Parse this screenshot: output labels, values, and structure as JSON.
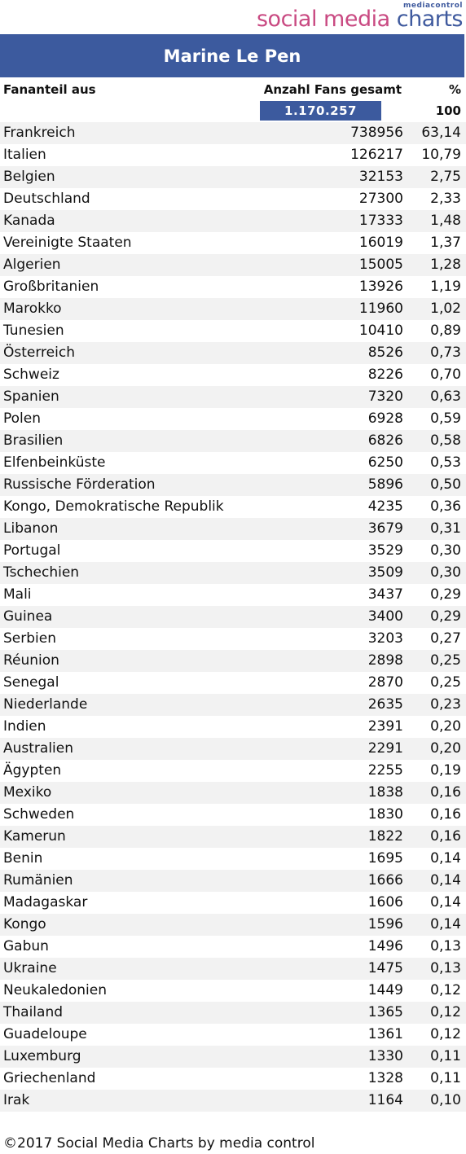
{
  "logo": {
    "top": "mediacontrol",
    "main": "social media ",
    "charts": "charts"
  },
  "title": "Marine Le Pen",
  "headers": {
    "country": "Fananteil aus",
    "fans": "Anzahl Fans gesamt",
    "pct": "%"
  },
  "total": {
    "fans": "1.170.257",
    "pct": "100"
  },
  "footer": "©2017 Social Media Charts by media control",
  "chart_data": {
    "type": "table",
    "title": "Marine Le Pen",
    "columns": [
      "Fananteil aus",
      "Anzahl Fans gesamt",
      "%"
    ],
    "rows": [
      {
        "country": "Frankreich",
        "fans": "738956",
        "pct": "63,14"
      },
      {
        "country": "Italien",
        "fans": "126217",
        "pct": "10,79"
      },
      {
        "country": "Belgien",
        "fans": "32153",
        "pct": "2,75"
      },
      {
        "country": "Deutschland",
        "fans": "27300",
        "pct": "2,33"
      },
      {
        "country": "Kanada",
        "fans": "17333",
        "pct": "1,48"
      },
      {
        "country": "Vereinigte Staaten",
        "fans": "16019",
        "pct": "1,37"
      },
      {
        "country": "Algerien",
        "fans": "15005",
        "pct": "1,28"
      },
      {
        "country": "Großbritanien",
        "fans": "13926",
        "pct": "1,19"
      },
      {
        "country": "Marokko",
        "fans": "11960",
        "pct": "1,02"
      },
      {
        "country": "Tunesien",
        "fans": "10410",
        "pct": "0,89"
      },
      {
        "country": "Österreich",
        "fans": "8526",
        "pct": "0,73"
      },
      {
        "country": "Schweiz",
        "fans": "8226",
        "pct": "0,70"
      },
      {
        "country": "Spanien",
        "fans": "7320",
        "pct": "0,63"
      },
      {
        "country": "Polen",
        "fans": "6928",
        "pct": "0,59"
      },
      {
        "country": "Brasilien",
        "fans": "6826",
        "pct": "0,58"
      },
      {
        "country": "Elfenbeinküste",
        "fans": "6250",
        "pct": "0,53"
      },
      {
        "country": "Russische Förderation",
        "fans": "5896",
        "pct": "0,50"
      },
      {
        "country": "Kongo, Demokratische Republik",
        "fans": "4235",
        "pct": "0,36"
      },
      {
        "country": "Libanon",
        "fans": "3679",
        "pct": "0,31"
      },
      {
        "country": "Portugal",
        "fans": "3529",
        "pct": "0,30"
      },
      {
        "country": "Tschechien",
        "fans": "3509",
        "pct": "0,30"
      },
      {
        "country": "Mali",
        "fans": "3437",
        "pct": "0,29"
      },
      {
        "country": "Guinea",
        "fans": "3400",
        "pct": "0,29"
      },
      {
        "country": "Serbien",
        "fans": "3203",
        "pct": "0,27"
      },
      {
        "country": "Réunion",
        "fans": "2898",
        "pct": "0,25"
      },
      {
        "country": "Senegal",
        "fans": "2870",
        "pct": "0,25"
      },
      {
        "country": "Niederlande",
        "fans": "2635",
        "pct": "0,23"
      },
      {
        "country": "Indien",
        "fans": "2391",
        "pct": "0,20"
      },
      {
        "country": "Australien",
        "fans": "2291",
        "pct": "0,20"
      },
      {
        "country": "Ägypten",
        "fans": "2255",
        "pct": "0,19"
      },
      {
        "country": "Mexiko",
        "fans": "1838",
        "pct": "0,16"
      },
      {
        "country": "Schweden",
        "fans": "1830",
        "pct": "0,16"
      },
      {
        "country": "Kamerun",
        "fans": "1822",
        "pct": "0,16"
      },
      {
        "country": "Benin",
        "fans": "1695",
        "pct": "0,14"
      },
      {
        "country": "Rumänien",
        "fans": "1666",
        "pct": "0,14"
      },
      {
        "country": "Madagaskar",
        "fans": "1606",
        "pct": "0,14"
      },
      {
        "country": "Kongo",
        "fans": "1596",
        "pct": "0,14"
      },
      {
        "country": "Gabun",
        "fans": "1496",
        "pct": "0,13"
      },
      {
        "country": "Ukraine",
        "fans": "1475",
        "pct": "0,13"
      },
      {
        "country": "Neukaledonien",
        "fans": "1449",
        "pct": "0,12"
      },
      {
        "country": "Thailand",
        "fans": "1365",
        "pct": "0,12"
      },
      {
        "country": "Guadeloupe",
        "fans": "1361",
        "pct": "0,12"
      },
      {
        "country": "Luxemburg",
        "fans": "1330",
        "pct": "0,11"
      },
      {
        "country": "Griechenland",
        "fans": "1328",
        "pct": "0,11"
      },
      {
        "country": "Irak",
        "fans": "1164",
        "pct": "0,10"
      }
    ]
  }
}
